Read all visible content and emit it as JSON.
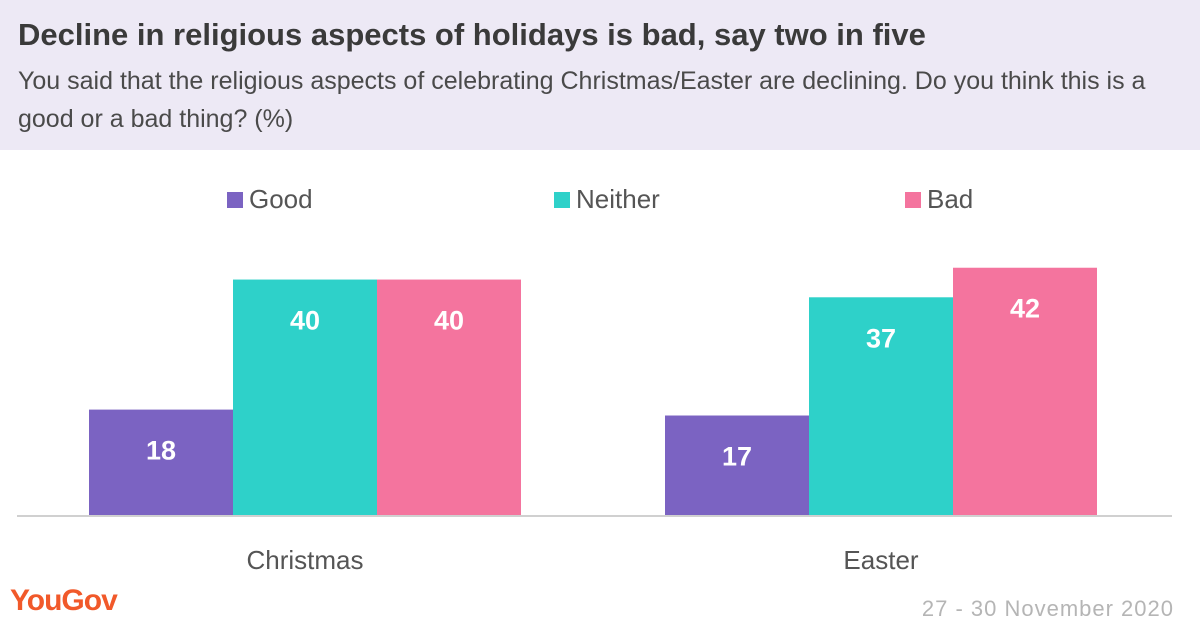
{
  "header": {
    "title": "Decline in religious aspects of holidays is bad, say two in five",
    "subtitle": "You said that the religious aspects of celebrating Christmas/Easter are declining. Do you think this is a good or a bad thing? (%)"
  },
  "footer": {
    "logo": "YouGov",
    "date": "27 - 30 November 2020"
  },
  "colors": {
    "header_bg": "#ede9f5",
    "good": "#7b63c2",
    "neither": "#2ed1c9",
    "bad": "#f4749e",
    "logo": "#f1592a"
  },
  "chart_data": {
    "type": "bar",
    "categories": [
      "Christmas",
      "Easter"
    ],
    "series": [
      {
        "name": "Good",
        "color": "#7b63c2",
        "values": [
          18,
          17
        ]
      },
      {
        "name": "Neither",
        "color": "#2ed1c9",
        "values": [
          40,
          37
        ]
      },
      {
        "name": "Bad",
        "color": "#f4749e",
        "values": [
          40,
          42
        ]
      }
    ],
    "ylim": [
      0,
      45
    ],
    "legend": "top-center",
    "grid": false,
    "data_labels": true
  }
}
